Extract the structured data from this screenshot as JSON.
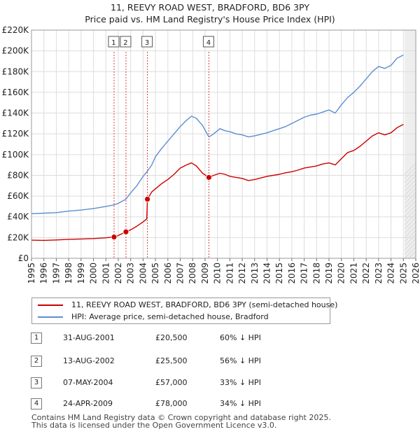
{
  "chart_data": {
    "type": "line",
    "title": "11, REEVY ROAD WEST, BRADFORD, BD6 3PY",
    "subtitle": "Price paid vs. HM Land Registry's House Price Index (HPI)",
    "xlim": [
      1995,
      2026
    ],
    "ylim": [
      0,
      220000
    ],
    "x_ticks": [
      1995,
      1996,
      1997,
      1998,
      1999,
      2000,
      2001,
      2002,
      2003,
      2004,
      2005,
      2006,
      2007,
      2008,
      2009,
      2010,
      2011,
      2012,
      2013,
      2014,
      2015,
      2016,
      2017,
      2018,
      2019,
      2020,
      2021,
      2022,
      2023,
      2024,
      2025,
      2026
    ],
    "y_ticks": [
      {
        "value": 0,
        "label": "£0"
      },
      {
        "value": 20000,
        "label": "£20K"
      },
      {
        "value": 40000,
        "label": "£40K"
      },
      {
        "value": 60000,
        "label": "£60K"
      },
      {
        "value": 80000,
        "label": "£80K"
      },
      {
        "value": 100000,
        "label": "£100K"
      },
      {
        "value": 120000,
        "label": "£120K"
      },
      {
        "value": 140000,
        "label": "£140K"
      },
      {
        "value": 160000,
        "label": "£160K"
      },
      {
        "value": 180000,
        "label": "£180K"
      },
      {
        "value": 200000,
        "label": "£200K"
      },
      {
        "value": 220000,
        "label": "£220K"
      }
    ],
    "grid": true,
    "future_shaded_from": 2025.1,
    "series": [
      {
        "name": "11, REEVY ROAD WEST, BRADFORD, BD6 3PY (semi-detached house)",
        "color": "#cc0000",
        "points": [
          [
            1995,
            17500
          ],
          [
            1996,
            17300
          ],
          [
            1997,
            17700
          ],
          [
            1998,
            18300
          ],
          [
            1999,
            18600
          ],
          [
            2000,
            19000
          ],
          [
            2001,
            19800
          ],
          [
            2001.66,
            20500
          ],
          [
            2002,
            22000
          ],
          [
            2002.62,
            25500
          ],
          [
            2003,
            27500
          ],
          [
            2003.5,
            31000
          ],
          [
            2004.0,
            35000
          ],
          [
            2004.3,
            38000
          ],
          [
            2004.35,
            57000
          ],
          [
            2004.7,
            64000
          ],
          [
            2005,
            67000
          ],
          [
            2005.5,
            72000
          ],
          [
            2006,
            76000
          ],
          [
            2006.5,
            81000
          ],
          [
            2007,
            87000
          ],
          [
            2007.5,
            90000
          ],
          [
            2007.9,
            92000
          ],
          [
            2008.3,
            89000
          ],
          [
            2008.8,
            82000
          ],
          [
            2009.31,
            78000
          ],
          [
            2009.7,
            80000
          ],
          [
            2010.2,
            82000
          ],
          [
            2010.6,
            81000
          ],
          [
            2011,
            79000
          ],
          [
            2011.5,
            78000
          ],
          [
            2012,
            77000
          ],
          [
            2012.5,
            75000
          ],
          [
            2013,
            76000
          ],
          [
            2013.5,
            77500
          ],
          [
            2014,
            79000
          ],
          [
            2014.5,
            80000
          ],
          [
            2015,
            81000
          ],
          [
            2015.5,
            82500
          ],
          [
            2016,
            83500
          ],
          [
            2016.5,
            85000
          ],
          [
            2017,
            87000
          ],
          [
            2017.5,
            88000
          ],
          [
            2018,
            89000
          ],
          [
            2018.5,
            91000
          ],
          [
            2019,
            92000
          ],
          [
            2019.5,
            90000
          ],
          [
            2020,
            96000
          ],
          [
            2020.5,
            102000
          ],
          [
            2021,
            104000
          ],
          [
            2021.5,
            108000
          ],
          [
            2022,
            113000
          ],
          [
            2022.5,
            118000
          ],
          [
            2023,
            121000
          ],
          [
            2023.5,
            119000
          ],
          [
            2024,
            121000
          ],
          [
            2024.5,
            126000
          ],
          [
            2025,
            129000
          ]
        ]
      },
      {
        "name": "HPI: Average price, semi-detached house, Bradford",
        "color": "#5b8fd0",
        "points": [
          [
            1995,
            43000
          ],
          [
            1996,
            43500
          ],
          [
            1997,
            44000
          ],
          [
            1998,
            45500
          ],
          [
            1999,
            46500
          ],
          [
            2000,
            48000
          ],
          [
            2001,
            50000
          ],
          [
            2001.66,
            51500
          ],
          [
            2002,
            53000
          ],
          [
            2002.62,
            57000
          ],
          [
            2003,
            63000
          ],
          [
            2003.5,
            70000
          ],
          [
            2004,
            79000
          ],
          [
            2004.35,
            84000
          ],
          [
            2004.7,
            90000
          ],
          [
            2005,
            98000
          ],
          [
            2005.5,
            106000
          ],
          [
            2006,
            113000
          ],
          [
            2006.5,
            120000
          ],
          [
            2007,
            127000
          ],
          [
            2007.5,
            133000
          ],
          [
            2007.9,
            137000
          ],
          [
            2008.3,
            135000
          ],
          [
            2008.8,
            128000
          ],
          [
            2009.31,
            117000
          ],
          [
            2009.7,
            120000
          ],
          [
            2010.2,
            125000
          ],
          [
            2010.6,
            123000
          ],
          [
            2011,
            122000
          ],
          [
            2011.5,
            120000
          ],
          [
            2012,
            119000
          ],
          [
            2012.5,
            117000
          ],
          [
            2013,
            118000
          ],
          [
            2013.5,
            119500
          ],
          [
            2014,
            121000
          ],
          [
            2014.5,
            123000
          ],
          [
            2015,
            125000
          ],
          [
            2015.5,
            127000
          ],
          [
            2016,
            130000
          ],
          [
            2016.5,
            133000
          ],
          [
            2017,
            136000
          ],
          [
            2017.5,
            138000
          ],
          [
            2018,
            139000
          ],
          [
            2018.5,
            141000
          ],
          [
            2019,
            143000
          ],
          [
            2019.5,
            140000
          ],
          [
            2020,
            148000
          ],
          [
            2020.5,
            155000
          ],
          [
            2021,
            160000
          ],
          [
            2021.5,
            166000
          ],
          [
            2022,
            173000
          ],
          [
            2022.5,
            180000
          ],
          [
            2023,
            185000
          ],
          [
            2023.5,
            183000
          ],
          [
            2024,
            186000
          ],
          [
            2024.5,
            193000
          ],
          [
            2025,
            196000
          ]
        ]
      }
    ],
    "transactions": [
      {
        "num": "1",
        "x": 2001.66,
        "y": 20500
      },
      {
        "num": "2",
        "x": 2002.62,
        "y": 25500
      },
      {
        "num": "3",
        "x": 2004.35,
        "y": 57000
      },
      {
        "num": "4",
        "x": 2009.31,
        "y": 78000
      }
    ]
  },
  "legend": {
    "property_label": "11, REEVY ROAD WEST, BRADFORD, BD6 3PY (semi-detached house)",
    "hpi_label": "HPI: Average price, semi-detached house, Bradford"
  },
  "table": [
    {
      "num": "1",
      "date": "31-AUG-2001",
      "price": "£20,500",
      "hpi": "60% ↓ HPI"
    },
    {
      "num": "2",
      "date": "13-AUG-2002",
      "price": "£25,500",
      "hpi": "56% ↓ HPI"
    },
    {
      "num": "3",
      "date": "07-MAY-2004",
      "price": "£57,000",
      "hpi": "33% ↓ HPI"
    },
    {
      "num": "4",
      "date": "24-APR-2009",
      "price": "£78,000",
      "hpi": "34% ↓ HPI"
    }
  ],
  "footer": {
    "line1": "Contains HM Land Registry data © Crown copyright and database right 2025.",
    "line2": "This data is licensed under the Open Government Licence v3.0."
  },
  "colors": {
    "property": "#cc0000",
    "hpi": "#5b8fd0",
    "grid": "#dddddd",
    "vline": "#cc0000"
  }
}
